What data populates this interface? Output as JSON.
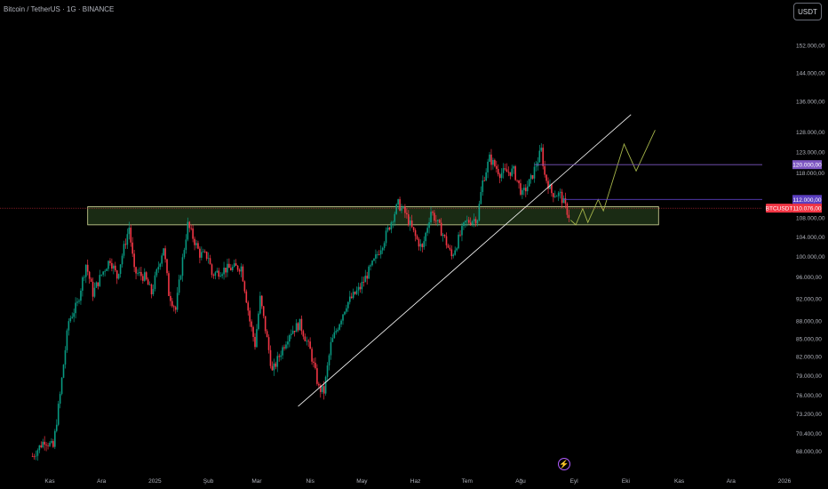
{
  "header": {
    "title": "Bitcoin / TetherUS · 1G · BINANCE",
    "currency_button": "USDT"
  },
  "colors": {
    "up": "#089981",
    "down": "#f23645",
    "zone_fill": "#1a2b14",
    "zone_border": "#d8df9d",
    "trendline": "#ffffff",
    "projection": "#a6b54a",
    "level_120k": "#7e57c2",
    "level_112k": "#5b3fc0",
    "price_line": "#f23645"
  },
  "flash_icon": "lightning-icon",
  "chart_data": {
    "type": "candlestick",
    "title": "Bitcoin / TetherUS · 1G · BINANCE",
    "ylim": [
      66500,
      160000
    ],
    "y_ticks": [
      {
        "value": 152000,
        "label": "152.000,00"
      },
      {
        "value": 144000,
        "label": "144.000,00"
      },
      {
        "value": 136000,
        "label": "136.000,00"
      },
      {
        "value": 128000,
        "label": "128.000,00"
      },
      {
        "value": 123000,
        "label": "123.000,00"
      },
      {
        "value": 118000,
        "label": "118.000,00"
      },
      {
        "value": 108000,
        "label": "108.000,00"
      },
      {
        "value": 104000,
        "label": "104.000,00"
      },
      {
        "value": 100000,
        "label": "100.000,00"
      },
      {
        "value": 96000,
        "label": "96.000,00"
      },
      {
        "value": 92000,
        "label": "92.000,00"
      },
      {
        "value": 88000,
        "label": "88.000,00"
      },
      {
        "value": 85000,
        "label": "85.000,00"
      },
      {
        "value": 82000,
        "label": "82.000,00"
      },
      {
        "value": 79000,
        "label": "79.000,00"
      },
      {
        "value": 76000,
        "label": "76.000,00"
      },
      {
        "value": 73200,
        "label": "73.200,00"
      },
      {
        "value": 70400,
        "label": "70.400,00"
      },
      {
        "value": 68000,
        "label": "68.000,00"
      }
    ],
    "x_ticks": [
      {
        "value": "2024-11-01",
        "label": "Kas"
      },
      {
        "value": "2024-12-01",
        "label": "Ara"
      },
      {
        "value": "2025-01-01",
        "label": "2025"
      },
      {
        "value": "2025-02-01",
        "label": "Şub"
      },
      {
        "value": "2025-03-01",
        "label": "Mar"
      },
      {
        "value": "2025-04-01",
        "label": "Nis"
      },
      {
        "value": "2025-05-01",
        "label": "May"
      },
      {
        "value": "2025-06-01",
        "label": "Haz"
      },
      {
        "value": "2025-07-01",
        "label": "Tem"
      },
      {
        "value": "2025-08-01",
        "label": "Ağu"
      },
      {
        "value": "2025-09-01",
        "label": "Eyl"
      },
      {
        "value": "2025-10-01",
        "label": "Eki"
      },
      {
        "value": "2025-11-01",
        "label": "Kas"
      },
      {
        "value": "2025-12-01",
        "label": "Ara"
      },
      {
        "value": "2026-01-01",
        "label": "2026"
      }
    ],
    "price_path": [
      [
        "2024-10-22",
        67300
      ],
      [
        "2024-10-29",
        69500
      ],
      [
        "2024-11-03",
        68500
      ],
      [
        "2024-11-07",
        76000
      ],
      [
        "2024-11-12",
        88000
      ],
      [
        "2024-11-17",
        91000
      ],
      [
        "2024-11-22",
        98500
      ],
      [
        "2024-11-26",
        93000
      ],
      [
        "2024-12-01",
        96500
      ],
      [
        "2024-12-06",
        99500
      ],
      [
        "2024-12-10",
        96000
      ],
      [
        "2024-12-17",
        106000
      ],
      [
        "2024-12-20",
        97000
      ],
      [
        "2024-12-26",
        96000
      ],
      [
        "2024-12-30",
        93000
      ],
      [
        "2025-01-06",
        102000
      ],
      [
        "2025-01-09",
        93000
      ],
      [
        "2025-01-13",
        90000
      ],
      [
        "2025-01-20",
        106500
      ],
      [
        "2025-01-27",
        100500
      ],
      [
        "2025-02-01",
        100000
      ],
      [
        "2025-02-03",
        96500
      ],
      [
        "2025-02-10",
        97500
      ],
      [
        "2025-02-20",
        98000
      ],
      [
        "2025-02-25",
        88000
      ],
      [
        "2025-02-28",
        84000
      ],
      [
        "2025-03-03",
        92000
      ],
      [
        "2025-03-10",
        79500
      ],
      [
        "2025-03-20",
        86000
      ],
      [
        "2025-03-26",
        87500
      ],
      [
        "2025-04-01",
        83000
      ],
      [
        "2025-04-06",
        77000
      ],
      [
        "2025-04-09",
        76500
      ],
      [
        "2025-04-13",
        84000
      ],
      [
        "2025-04-22",
        91000
      ],
      [
        "2025-04-30",
        94000
      ],
      [
        "2025-05-08",
        99000
      ],
      [
        "2025-05-14",
        103500
      ],
      [
        "2025-05-22",
        111000
      ],
      [
        "2025-05-26",
        109000
      ],
      [
        "2025-06-01",
        104000
      ],
      [
        "2025-06-05",
        101500
      ],
      [
        "2025-06-10",
        109500
      ],
      [
        "2025-06-17",
        104500
      ],
      [
        "2025-06-22",
        100000
      ],
      [
        "2025-06-30",
        107000
      ],
      [
        "2025-07-07",
        108000
      ],
      [
        "2025-07-10",
        116000
      ],
      [
        "2025-07-14",
        121500
      ],
      [
        "2025-07-20",
        118000
      ],
      [
        "2025-07-28",
        118500
      ],
      [
        "2025-08-02",
        113000
      ],
      [
        "2025-08-07",
        116500
      ],
      [
        "2025-08-13",
        123500
      ],
      [
        "2025-08-15",
        117500
      ],
      [
        "2025-08-19",
        113500
      ],
      [
        "2025-08-24",
        113000
      ],
      [
        "2025-08-29",
        108500
      ]
    ],
    "support_zone": {
      "x": [
        "2024-11-23",
        "2025-10-20"
      ],
      "y": [
        106500,
        110400
      ]
    },
    "trendline": {
      "x": [
        "2025-03-25",
        "2025-10-04"
      ],
      "y": [
        74300,
        132500
      ]
    },
    "projection_path": [
      [
        "2025-08-30",
        107500
      ],
      [
        "2025-09-02",
        106500
      ],
      [
        "2025-09-06",
        110000
      ],
      [
        "2025-09-09",
        107000
      ],
      [
        "2025-09-15",
        112000
      ],
      [
        "2025-09-18",
        109500
      ],
      [
        "2025-09-30",
        125000
      ],
      [
        "2025-10-07",
        118500
      ],
      [
        "2025-10-18",
        128500
      ]
    ],
    "levels": [
      {
        "value": 120000,
        "label": "120.000,00",
        "from": "2025-08-09"
      },
      {
        "value": 112000,
        "label": "112.000,00",
        "from": "2025-08-26"
      }
    ],
    "current_price": {
      "symbol": "BTCUSDT",
      "label": "110.076,00",
      "value": 110076
    },
    "grid": false
  }
}
